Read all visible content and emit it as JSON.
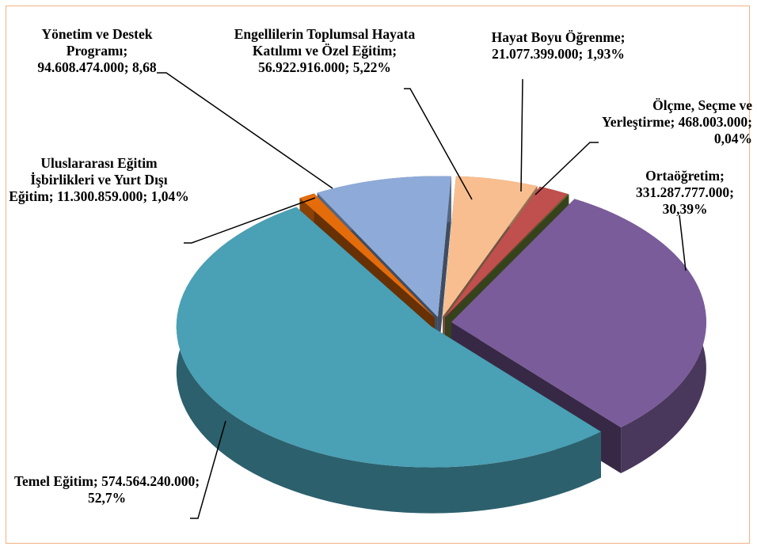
{
  "chart_data": {
    "type": "pie3d",
    "categories": [
      "Engellilerin Toplumsal Hayata Katılımı ve Özel Eğitim",
      "Hayat Boyu Öğrenme",
      "Ölçme, Seçme ve Yerleştirme",
      "Ortaöğretim",
      "Temel Eğitim",
      "Uluslararası Eğitim İşbirlikleri ve Yurt Dışı Eğitim",
      "Yönetim ve Destek Programı"
    ],
    "values": [
      56922916000,
      21077399000,
      468003000,
      331287777000,
      574564240000,
      11300859000,
      94608474000
    ],
    "labels": [
      "Engellilerin Toplumsal Hayata Katılımı ve Özel Eğitim; 56.922.916.000; 5,22%",
      "Hayat Boyu Öğrenme; 21.077.399.000; 1,93%",
      "Ölçme, Seçme ve Yerleştirme; 468.003.000; 0,04%",
      "Ortaöğretim; 331.287.777.000; 30,39%",
      "Temel Eğitim; 574.564.240.000; 52,7%",
      "Uluslararası Eğitim İşbirlikleri ve Yurt Dışı Eğitim; 11.300.859.000; 1,04%",
      "Yönetim ve Destek Programı; 94.608.474.000; 8,68"
    ],
    "colors": [
      "#f9be8f",
      "#c0504d",
      "#77933c",
      "#7a5c9a",
      "#4aa0b5",
      "#e46c0a",
      "#8eaad8"
    ]
  }
}
